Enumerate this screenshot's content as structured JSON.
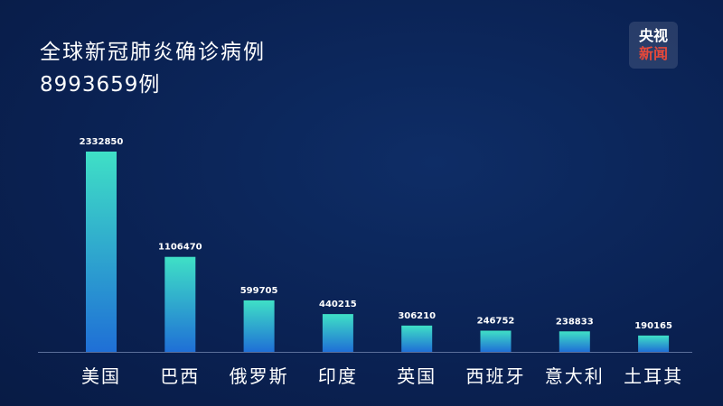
{
  "header": {
    "title": "全球新冠肺炎确诊病例",
    "total": "8993659例"
  },
  "logo": {
    "line1": "央视",
    "line2": "新闻"
  },
  "colors": {
    "background": "#0b2558",
    "bar_top": "#3fe0c6",
    "bar_bottom": "#1f6fd6",
    "baseline": "#5b6f9a",
    "text": "#ffffff",
    "logo_accent": "#e6493b"
  },
  "chart_data": {
    "type": "bar",
    "title": "全球新冠肺炎确诊病例",
    "subtitle": "8993659例",
    "categories": [
      "美国",
      "巴西",
      "俄罗斯",
      "印度",
      "英国",
      "西班牙",
      "意大利",
      "土耳其"
    ],
    "values": [
      2332850,
      1106470,
      599705,
      440215,
      306210,
      246752,
      238833,
      190165
    ],
    "data_labels": [
      "2332850",
      "1106470",
      "599705",
      "440215",
      "306210",
      "246752",
      "238833",
      "190165"
    ],
    "ylim": [
      0,
      2332850
    ],
    "grid": false,
    "legend": "none"
  }
}
